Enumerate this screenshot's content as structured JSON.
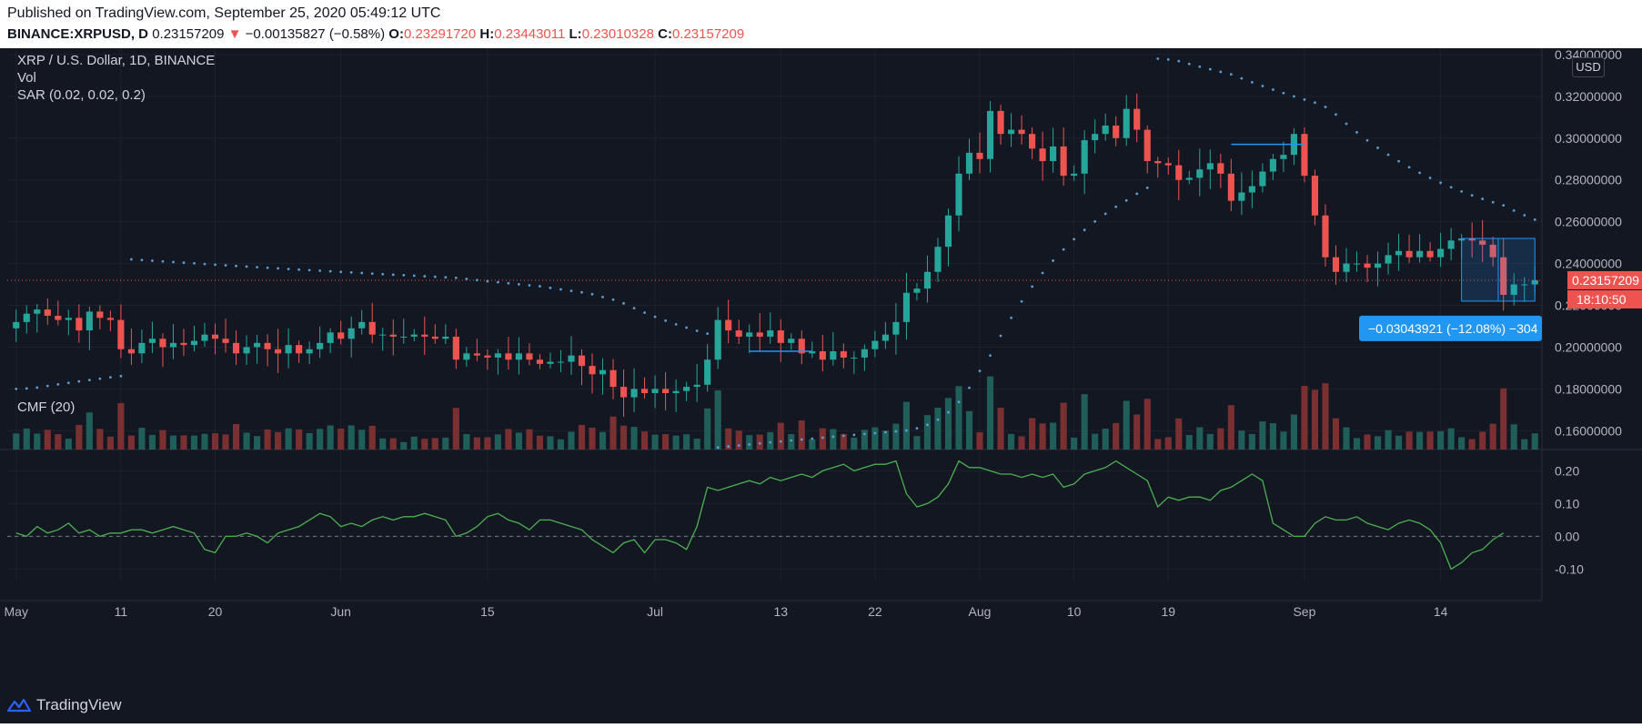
{
  "header": {
    "published": "Published on TradingView.com, September 25, 2020 05:49:12 UTC",
    "symbol": "BINANCE:XRPUSD, D",
    "last": "0.23157209",
    "change_arrow": "▼",
    "change": "−0.00135827 (−0.58%)",
    "o_label": "O:",
    "o": "0.23291720",
    "h_label": "H:",
    "h": "0.23443011",
    "l_label": "L:",
    "l": "0.23010328",
    "c_label": "C:",
    "c": "0.23157209"
  },
  "legend": {
    "title": "XRP / U.S. Dollar, 1D, BINANCE",
    "vol": "Vol",
    "sar": "SAR (0.02, 0.02, 0.2)",
    "cmf": "CMF (20)"
  },
  "currency_button": "USD",
  "price_tag": {
    "value": "0.23157209",
    "countdown": "18:10:50"
  },
  "measure_label": "−0.03043921 (−12.08%) −304",
  "branding": "TradingView",
  "colors": {
    "up": "#26a69a",
    "down": "#ef5350",
    "cmf": "#4caf50",
    "sar": "#5b9bd5",
    "background": "#131722"
  },
  "chart_data": [
    {
      "type": "candlestick",
      "title": "XRP / U.S. Dollar, 1D, BINANCE",
      "y_ticks": [
        "0.16000000",
        "0.18000000",
        "0.20000000",
        "0.22000000",
        "0.24000000",
        "0.26000000",
        "0.28000000",
        "0.30000000",
        "0.32000000",
        "0.34000000"
      ],
      "ylim": [
        0.151,
        0.343
      ],
      "x_ticks": [
        {
          "label": "May",
          "index": 0
        },
        {
          "label": "11",
          "index": 10
        },
        {
          "label": "20",
          "index": 19
        },
        {
          "label": "Jun",
          "index": 31
        },
        {
          "label": "15",
          "index": 45
        },
        {
          "label": "Jul",
          "index": 61
        },
        {
          "label": "13",
          "index": 73
        },
        {
          "label": "22",
          "index": 82
        },
        {
          "label": "Aug",
          "index": 92
        },
        {
          "label": "10",
          "index": 101
        },
        {
          "label": "19",
          "index": 110
        },
        {
          "label": "Sep",
          "index": 123
        },
        {
          "label": "14",
          "index": 136
        }
      ],
      "close": [
        0.212,
        0.216,
        0.218,
        0.215,
        0.213,
        0.214,
        0.208,
        0.217,
        0.214,
        0.213,
        0.199,
        0.197,
        0.202,
        0.204,
        0.2,
        0.202,
        0.201,
        0.203,
        0.206,
        0.204,
        0.202,
        0.197,
        0.2,
        0.202,
        0.199,
        0.197,
        0.201,
        0.197,
        0.199,
        0.202,
        0.207,
        0.204,
        0.209,
        0.212,
        0.206,
        0.206,
        0.205,
        0.205,
        0.206,
        0.205,
        0.204,
        0.205,
        0.194,
        0.197,
        0.196,
        0.195,
        0.197,
        0.194,
        0.197,
        0.194,
        0.192,
        0.193,
        0.193,
        0.196,
        0.191,
        0.187,
        0.189,
        0.181,
        0.176,
        0.18,
        0.178,
        0.18,
        0.178,
        0.179,
        0.181,
        0.182,
        0.194,
        0.213,
        0.208,
        0.205,
        0.207,
        0.205,
        0.208,
        0.202,
        0.204,
        0.197,
        0.198,
        0.194,
        0.198,
        0.195,
        0.195,
        0.199,
        0.203,
        0.206,
        0.212,
        0.226,
        0.228,
        0.236,
        0.248,
        0.263,
        0.283,
        0.293,
        0.29,
        0.313,
        0.302,
        0.304,
        0.302,
        0.295,
        0.289,
        0.296,
        0.282,
        0.283,
        0.299,
        0.302,
        0.306,
        0.3,
        0.314,
        0.304,
        0.289,
        0.288,
        0.287,
        0.28,
        0.281,
        0.285,
        0.288,
        0.283,
        0.27,
        0.274,
        0.277,
        0.284,
        0.29,
        0.292,
        0.302,
        0.282,
        0.263,
        0.243,
        0.236,
        0.24,
        0.24,
        0.238,
        0.24,
        0.244,
        0.246,
        0.243,
        0.246,
        0.243,
        0.247,
        0.251,
        0.252,
        0.251,
        0.249,
        0.243,
        0.225,
        0.23,
        0.23,
        0.232
      ],
      "high": 0.33443,
      "low": 0.16941,
      "volume_ylim": [
        0,
        12
      ],
      "sar_series_label": "SAR (0.02, 0.02, 0.2)",
      "annotations": [
        {
          "type": "horizontal_segment",
          "from_index": 70,
          "to_index": 76,
          "y": 0.198
        },
        {
          "type": "horizontal_segment",
          "from_index": 116,
          "to_index": 123,
          "y": 0.297
        },
        {
          "type": "range_box",
          "from_index": 138,
          "to_index": 145,
          "y_top": 0.252,
          "y_bottom": 0.222,
          "label": "−0.03043921 (−12.08%) −304"
        }
      ]
    },
    {
      "type": "line",
      "title": "CMF (20)",
      "y_ticks": [
        "-0.10",
        "0.00",
        "0.10",
        "0.20"
      ],
      "ylim": [
        -0.135,
        0.265
      ],
      "values": [
        0.01,
        0.0,
        0.03,
        0.01,
        0.02,
        0.04,
        0.01,
        0.02,
        0.0,
        0.01,
        0.01,
        0.02,
        0.02,
        0.01,
        0.02,
        0.03,
        0.02,
        0.01,
        -0.04,
        -0.05,
        0.0,
        0.0,
        0.01,
        0.0,
        -0.02,
        0.01,
        0.02,
        0.03,
        0.05,
        0.07,
        0.06,
        0.03,
        0.04,
        0.03,
        0.05,
        0.06,
        0.05,
        0.06,
        0.06,
        0.07,
        0.06,
        0.05,
        0.0,
        0.01,
        0.03,
        0.06,
        0.07,
        0.05,
        0.04,
        0.02,
        0.05,
        0.05,
        0.04,
        0.03,
        0.02,
        -0.01,
        -0.03,
        -0.05,
        -0.02,
        -0.01,
        -0.05,
        -0.01,
        -0.01,
        -0.02,
        -0.04,
        0.03,
        0.15,
        0.14,
        0.15,
        0.16,
        0.17,
        0.16,
        0.18,
        0.17,
        0.18,
        0.19,
        0.18,
        0.2,
        0.21,
        0.22,
        0.2,
        0.21,
        0.22,
        0.22,
        0.23,
        0.13,
        0.09,
        0.1,
        0.12,
        0.16,
        0.23,
        0.21,
        0.21,
        0.2,
        0.19,
        0.19,
        0.18,
        0.19,
        0.18,
        0.19,
        0.15,
        0.16,
        0.19,
        0.2,
        0.21,
        0.23,
        0.21,
        0.19,
        0.17,
        0.09,
        0.12,
        0.11,
        0.12,
        0.12,
        0.11,
        0.14,
        0.15,
        0.17,
        0.19,
        0.17,
        0.04,
        0.02,
        0.0,
        0.0,
        0.04,
        0.06,
        0.05,
        0.05,
        0.06,
        0.04,
        0.03,
        0.02,
        0.04,
        0.05,
        0.04,
        0.02,
        -0.02,
        -0.1,
        -0.08,
        -0.05,
        -0.04,
        -0.01,
        0.01
      ]
    }
  ]
}
